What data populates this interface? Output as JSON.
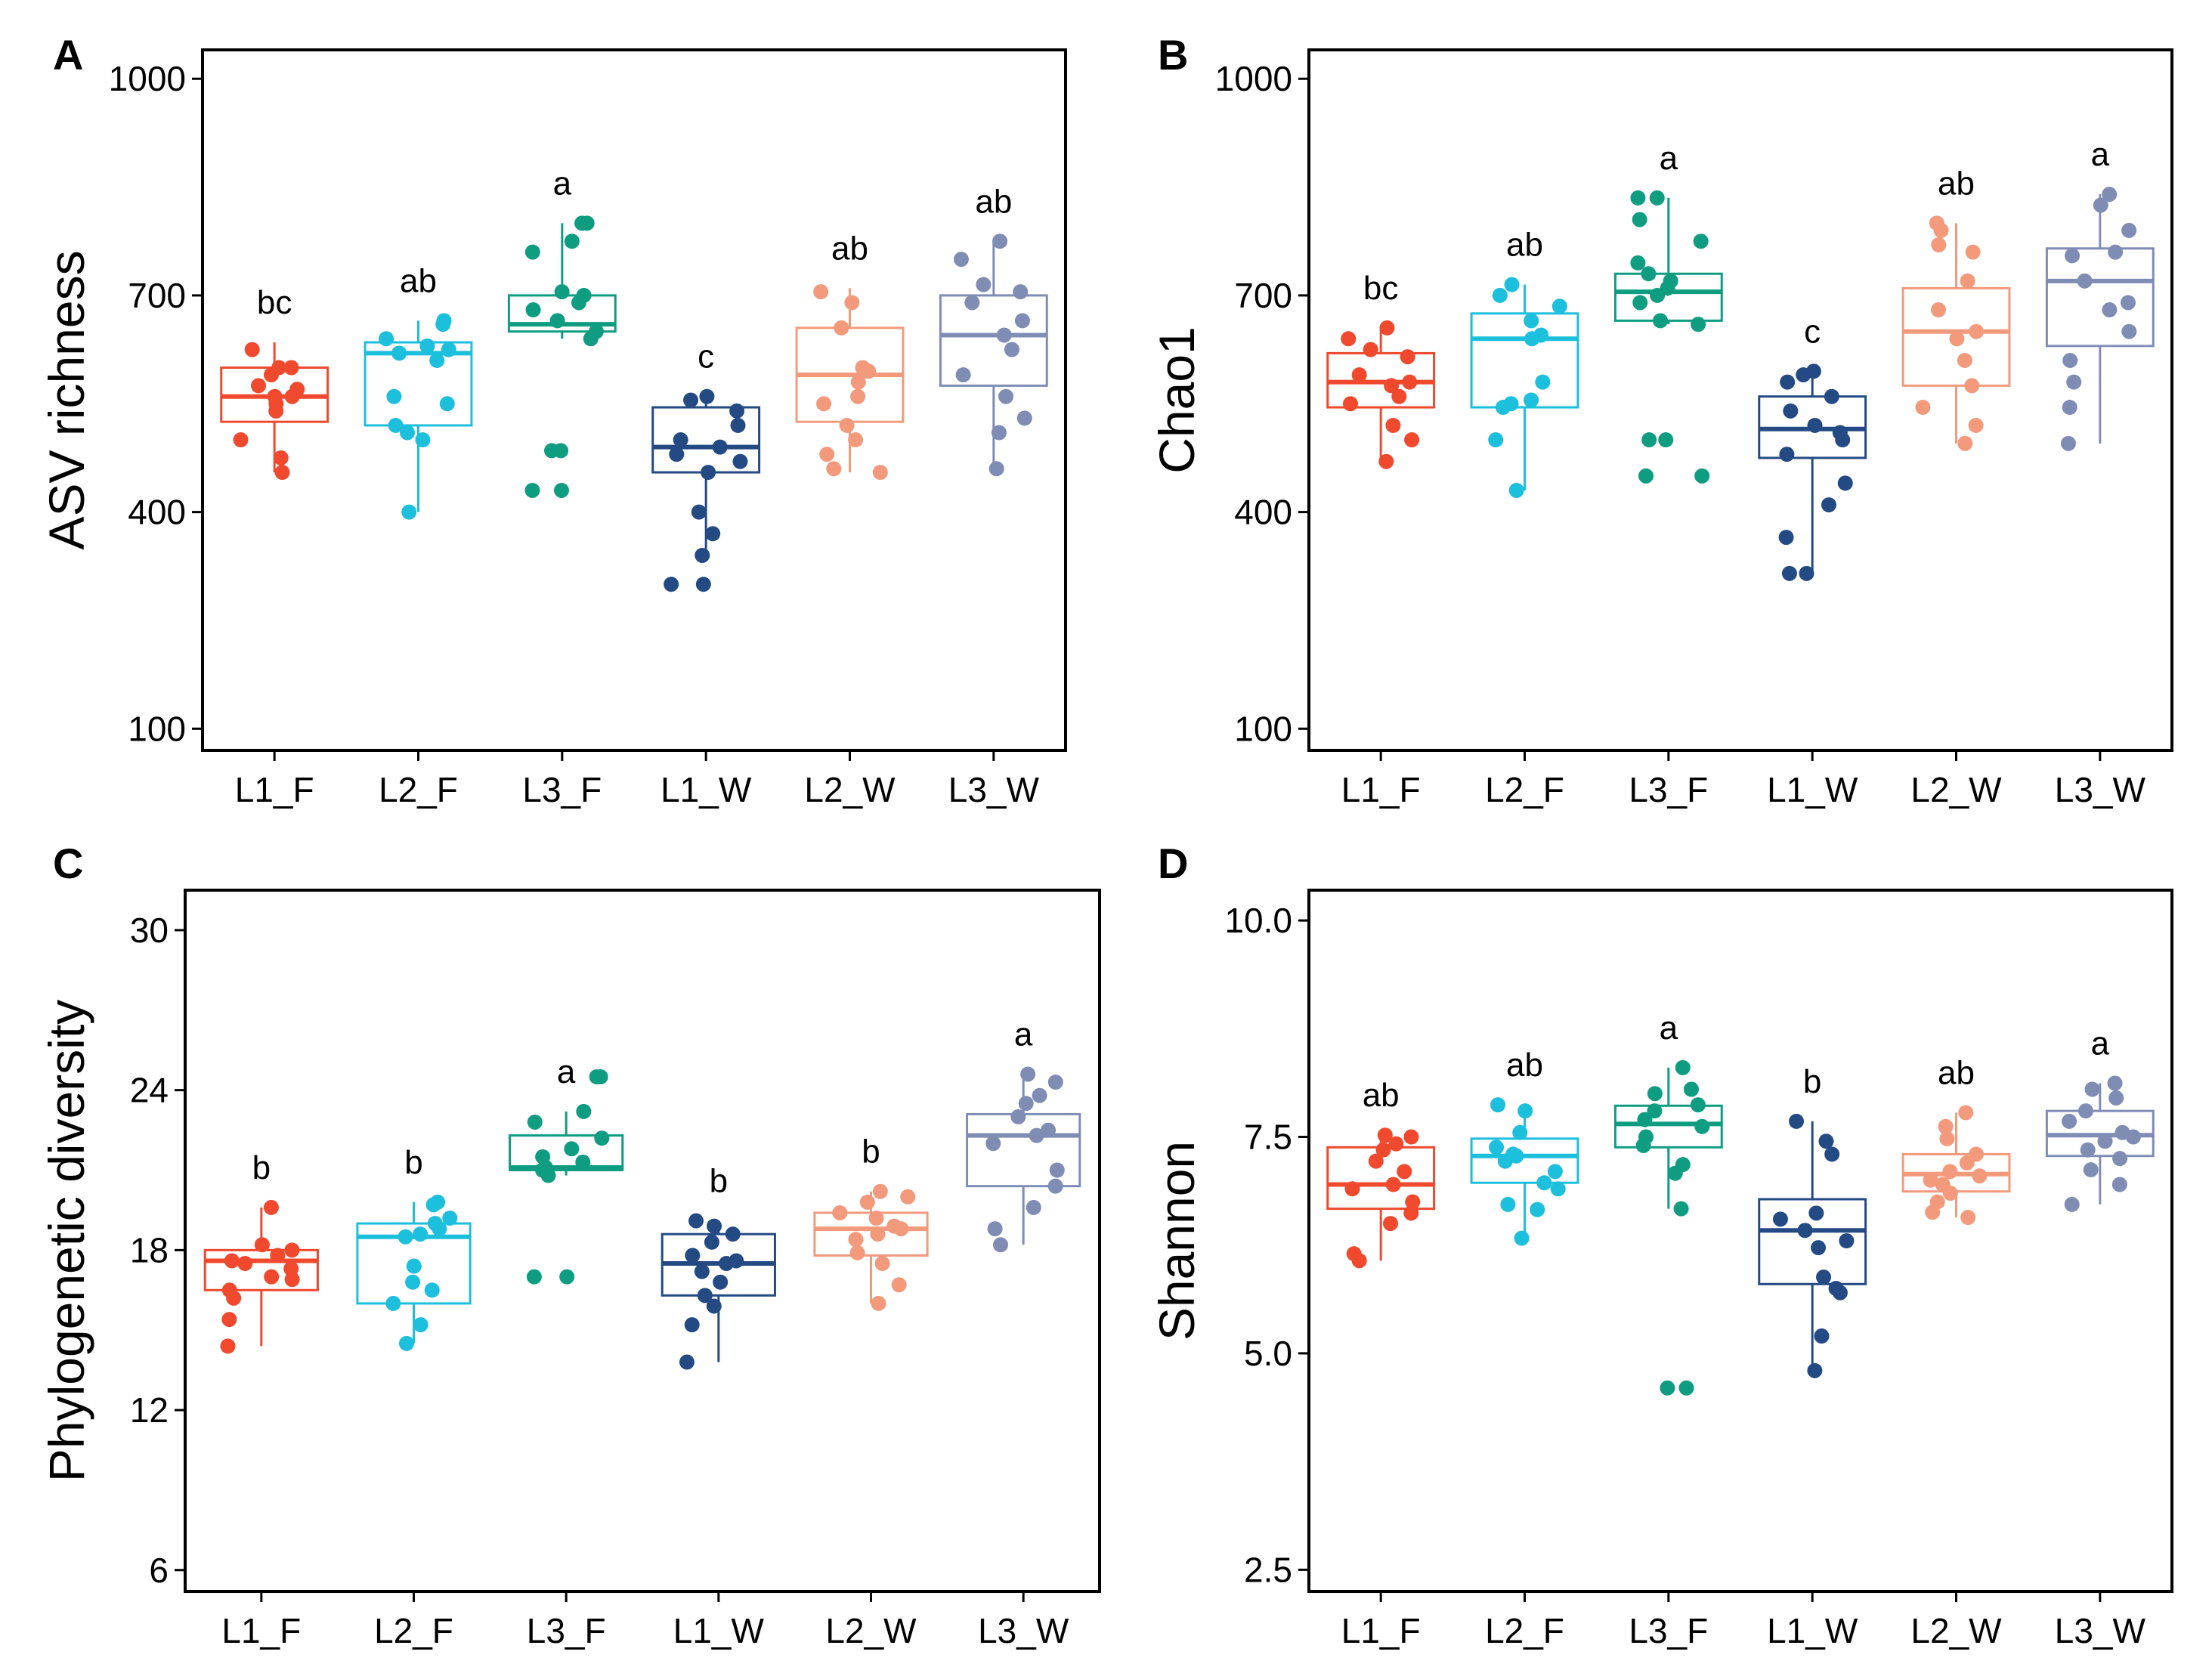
{
  "colors": {
    "L1_F": "#f0492d",
    "L2_F": "#1cbfdc",
    "L3_F": "#0f9d82",
    "L1_W": "#244a84",
    "L2_W": "#f49a7c",
    "L3_W": "#7f8db5"
  },
  "chart_data": [
    {
      "panel": "A",
      "type": "box",
      "ylabel": "ASV richness",
      "xlabel": "",
      "ylim": [
        70,
        1040
      ],
      "yticks": [
        100,
        400,
        700,
        1000
      ],
      "ytick_labels": [
        "100",
        "400",
        "700",
        "1000"
      ],
      "categories": [
        "L1_F",
        "L2_F",
        "L3_F",
        "L1_W",
        "L2_W",
        "L3_W"
      ],
      "boxes": [
        {
          "category": "L1_F",
          "q1": 525,
          "median": 560,
          "q3": 600,
          "whisker_low": 455,
          "whisker_high": 635,
          "letter": "bc",
          "points": [
            625,
            600,
            600,
            590,
            575,
            570,
            560,
            560,
            550,
            540,
            500,
            475,
            455
          ]
        },
        {
          "category": "L2_F",
          "q1": 520,
          "median": 620,
          "q3": 635,
          "whisker_low": 400,
          "whisker_high": 665,
          "letter": "ab",
          "points": [
            665,
            660,
            640,
            630,
            625,
            620,
            610,
            560,
            550,
            520,
            510,
            500,
            400
          ]
        },
        {
          "category": "L3_F",
          "q1": 650,
          "median": 660,
          "q3": 700,
          "whisker_low": 640,
          "whisker_high": 800,
          "letter": "a",
          "points": [
            800,
            800,
            775,
            760,
            705,
            700,
            690,
            680,
            665,
            650,
            640,
            485,
            485,
            430,
            430
          ]
        },
        {
          "category": "L1_W",
          "q1": 455,
          "median": 490,
          "q3": 545,
          "whisker_low": 340,
          "whisker_high": 560,
          "letter": "c",
          "points": [
            560,
            555,
            540,
            520,
            500,
            490,
            480,
            470,
            455,
            400,
            370,
            340,
            300,
            300
          ]
        },
        {
          "category": "L2_W",
          "q1": 525,
          "median": 590,
          "q3": 655,
          "whisker_low": 455,
          "whisker_high": 710,
          "letter": "ab",
          "points": [
            705,
            690,
            655,
            600,
            595,
            580,
            560,
            550,
            520,
            500,
            480,
            460,
            455
          ]
        },
        {
          "category": "L3_W",
          "q1": 575,
          "median": 645,
          "q3": 700,
          "whisker_low": 460,
          "whisker_high": 775,
          "letter": "ab",
          "points": [
            775,
            750,
            715,
            705,
            690,
            665,
            645,
            625,
            590,
            560,
            530,
            510,
            460
          ]
        }
      ]
    },
    {
      "panel": "B",
      "type": "box",
      "ylabel": "Chao1",
      "xlabel": "",
      "ylim": [
        70,
        1040
      ],
      "yticks": [
        100,
        400,
        700,
        1000
      ],
      "ytick_labels": [
        "100",
        "400",
        "700",
        "1000"
      ],
      "categories": [
        "L1_F",
        "L2_F",
        "L3_F",
        "L1_W",
        "L2_W",
        "L3_W"
      ],
      "boxes": [
        {
          "category": "L1_F",
          "q1": 545,
          "median": 580,
          "q3": 620,
          "whisker_low": 470,
          "whisker_high": 655,
          "letter": "bc",
          "points": [
            655,
            640,
            625,
            615,
            590,
            580,
            575,
            560,
            550,
            520,
            500,
            470
          ]
        },
        {
          "category": "L2_F",
          "q1": 545,
          "median": 640,
          "q3": 675,
          "whisker_low": 430,
          "whisker_high": 715,
          "letter": "ab",
          "points": [
            715,
            700,
            685,
            665,
            645,
            640,
            580,
            555,
            550,
            545,
            500,
            430
          ]
        },
        {
          "category": "L3_F",
          "q1": 665,
          "median": 705,
          "q3": 730,
          "whisker_low": 660,
          "whisker_high": 835,
          "letter": "a",
          "points": [
            835,
            835,
            805,
            775,
            745,
            730,
            720,
            710,
            700,
            690,
            665,
            660,
            500,
            500,
            450,
            450
          ]
        },
        {
          "category": "L1_W",
          "q1": 475,
          "median": 515,
          "q3": 560,
          "whisker_low": 315,
          "whisker_high": 595,
          "letter": "c",
          "points": [
            595,
            590,
            580,
            560,
            540,
            520,
            510,
            500,
            480,
            440,
            410,
            365,
            315,
            315
          ]
        },
        {
          "category": "L2_W",
          "q1": 575,
          "median": 650,
          "q3": 710,
          "whisker_low": 495,
          "whisker_high": 800,
          "letter": "ab",
          "points": [
            800,
            790,
            770,
            760,
            720,
            680,
            650,
            640,
            610,
            575,
            545,
            520,
            495
          ]
        },
        {
          "category": "L3_W",
          "q1": 630,
          "median": 720,
          "q3": 765,
          "whisker_low": 495,
          "whisker_high": 840,
          "letter": "a",
          "points": [
            840,
            825,
            790,
            760,
            755,
            720,
            690,
            680,
            650,
            610,
            580,
            545,
            495
          ]
        }
      ]
    },
    {
      "panel": "C",
      "type": "box",
      "ylabel": "Phylogenetic diversity",
      "xlabel": "",
      "ylim": [
        5.2,
        31.5
      ],
      "yticks": [
        6,
        12,
        18,
        24,
        30
      ],
      "ytick_labels": [
        "6",
        "12",
        "18",
        "24",
        "30"
      ],
      "categories": [
        "L1_F",
        "L2_F",
        "L3_F",
        "L1_W",
        "L2_W",
        "L3_W"
      ],
      "boxes": [
        {
          "category": "L1_F",
          "q1": 16.5,
          "median": 17.6,
          "q3": 18.0,
          "whisker_low": 14.4,
          "whisker_high": 19.6,
          "letter": "b",
          "points": [
            19.6,
            18.2,
            18.0,
            17.8,
            17.6,
            17.5,
            17.3,
            17.0,
            16.9,
            16.5,
            16.2,
            15.4,
            14.4
          ]
        },
        {
          "category": "L2_F",
          "q1": 16.0,
          "median": 18.5,
          "q3": 19.0,
          "whisker_low": 14.5,
          "whisker_high": 19.8,
          "letter": "b",
          "points": [
            19.8,
            19.7,
            19.2,
            19.0,
            18.8,
            18.6,
            18.5,
            17.4,
            16.8,
            16.5,
            16.0,
            15.2,
            14.5
          ]
        },
        {
          "category": "L3_F",
          "q1": 21.0,
          "median": 21.1,
          "q3": 22.3,
          "whisker_low": 20.8,
          "whisker_high": 23.2,
          "letter": "a",
          "points": [
            24.5,
            24.5,
            23.2,
            22.8,
            22.2,
            21.8,
            21.5,
            21.3,
            21.1,
            21.0,
            20.8,
            17.0,
            17.0
          ]
        },
        {
          "category": "L1_W",
          "q1": 16.3,
          "median": 17.5,
          "q3": 18.6,
          "whisker_low": 13.8,
          "whisker_high": 19.1,
          "letter": "b",
          "points": [
            19.1,
            18.9,
            18.6,
            18.3,
            17.8,
            17.6,
            17.5,
            17.2,
            16.8,
            16.3,
            15.9,
            15.2,
            13.8
          ]
        },
        {
          "category": "L2_W",
          "q1": 17.8,
          "median": 18.8,
          "q3": 19.4,
          "whisker_low": 16.0,
          "whisker_high": 20.2,
          "letter": "b",
          "points": [
            20.2,
            20.0,
            19.8,
            19.4,
            19.2,
            18.9,
            18.8,
            18.6,
            18.4,
            17.9,
            17.5,
            16.7,
            16.0
          ]
        },
        {
          "category": "L3_W",
          "q1": 20.4,
          "median": 22.3,
          "q3": 23.1,
          "whisker_low": 18.2,
          "whisker_high": 24.6,
          "letter": "a",
          "points": [
            24.6,
            24.3,
            23.8,
            23.5,
            23.0,
            22.5,
            22.3,
            22.0,
            21.0,
            20.4,
            19.6,
            18.8,
            18.2
          ]
        }
      ]
    },
    {
      "panel": "D",
      "type": "box",
      "ylabel": "Shannon",
      "xlabel": "",
      "ylim": [
        2.25,
        10.35
      ],
      "yticks": [
        2.5,
        5.0,
        7.5,
        10.0
      ],
      "ytick_labels": [
        "2.5",
        "5.0",
        "7.5",
        "10.0"
      ],
      "categories": [
        "L1_F",
        "L2_F",
        "L3_F",
        "L1_W",
        "L2_W",
        "L3_W"
      ],
      "boxes": [
        {
          "category": "L1_F",
          "q1": 6.67,
          "median": 6.95,
          "q3": 7.38,
          "whisker_low": 6.07,
          "whisker_high": 7.52,
          "letter": "ab",
          "points": [
            7.52,
            7.5,
            7.42,
            7.35,
            7.22,
            7.1,
            6.95,
            6.9,
            6.75,
            6.62,
            6.5,
            6.15,
            6.07
          ]
        },
        {
          "category": "L2_F",
          "q1": 6.97,
          "median": 7.28,
          "q3": 7.48,
          "whisker_low": 6.33,
          "whisker_high": 7.87,
          "letter": "ab",
          "points": [
            7.87,
            7.8,
            7.55,
            7.38,
            7.3,
            7.28,
            7.22,
            7.1,
            6.97,
            6.9,
            6.72,
            6.66,
            6.33
          ]
        },
        {
          "category": "L3_F",
          "q1": 7.38,
          "median": 7.65,
          "q3": 7.86,
          "whisker_low": 6.67,
          "whisker_high": 8.3,
          "letter": "a",
          "points": [
            8.3,
            8.05,
            8.0,
            7.87,
            7.8,
            7.7,
            7.62,
            7.5,
            7.4,
            7.18,
            7.08,
            6.67,
            4.6,
            4.6
          ]
        },
        {
          "category": "L1_W",
          "q1": 5.8,
          "median": 6.42,
          "q3": 6.78,
          "whisker_low": 4.8,
          "whisker_high": 7.68,
          "letter": "b",
          "points": [
            7.68,
            7.45,
            7.3,
            6.62,
            6.55,
            6.42,
            6.3,
            6.22,
            5.88,
            5.75,
            5.7,
            5.2,
            4.8
          ]
        },
        {
          "category": "L2_W",
          "q1": 6.87,
          "median": 7.07,
          "q3": 7.3,
          "whisker_low": 6.57,
          "whisker_high": 7.78,
          "letter": "ab",
          "points": [
            7.78,
            7.62,
            7.48,
            7.3,
            7.2,
            7.1,
            7.05,
            7.0,
            6.95,
            6.85,
            6.75,
            6.63,
            6.57
          ]
        },
        {
          "category": "L3_W",
          "q1": 7.28,
          "median": 7.52,
          "q3": 7.8,
          "whisker_low": 6.72,
          "whisker_high": 8.12,
          "letter": "a",
          "points": [
            8.12,
            8.05,
            7.95,
            7.8,
            7.68,
            7.55,
            7.5,
            7.45,
            7.35,
            7.25,
            7.12,
            6.95,
            6.72
          ]
        }
      ]
    }
  ]
}
